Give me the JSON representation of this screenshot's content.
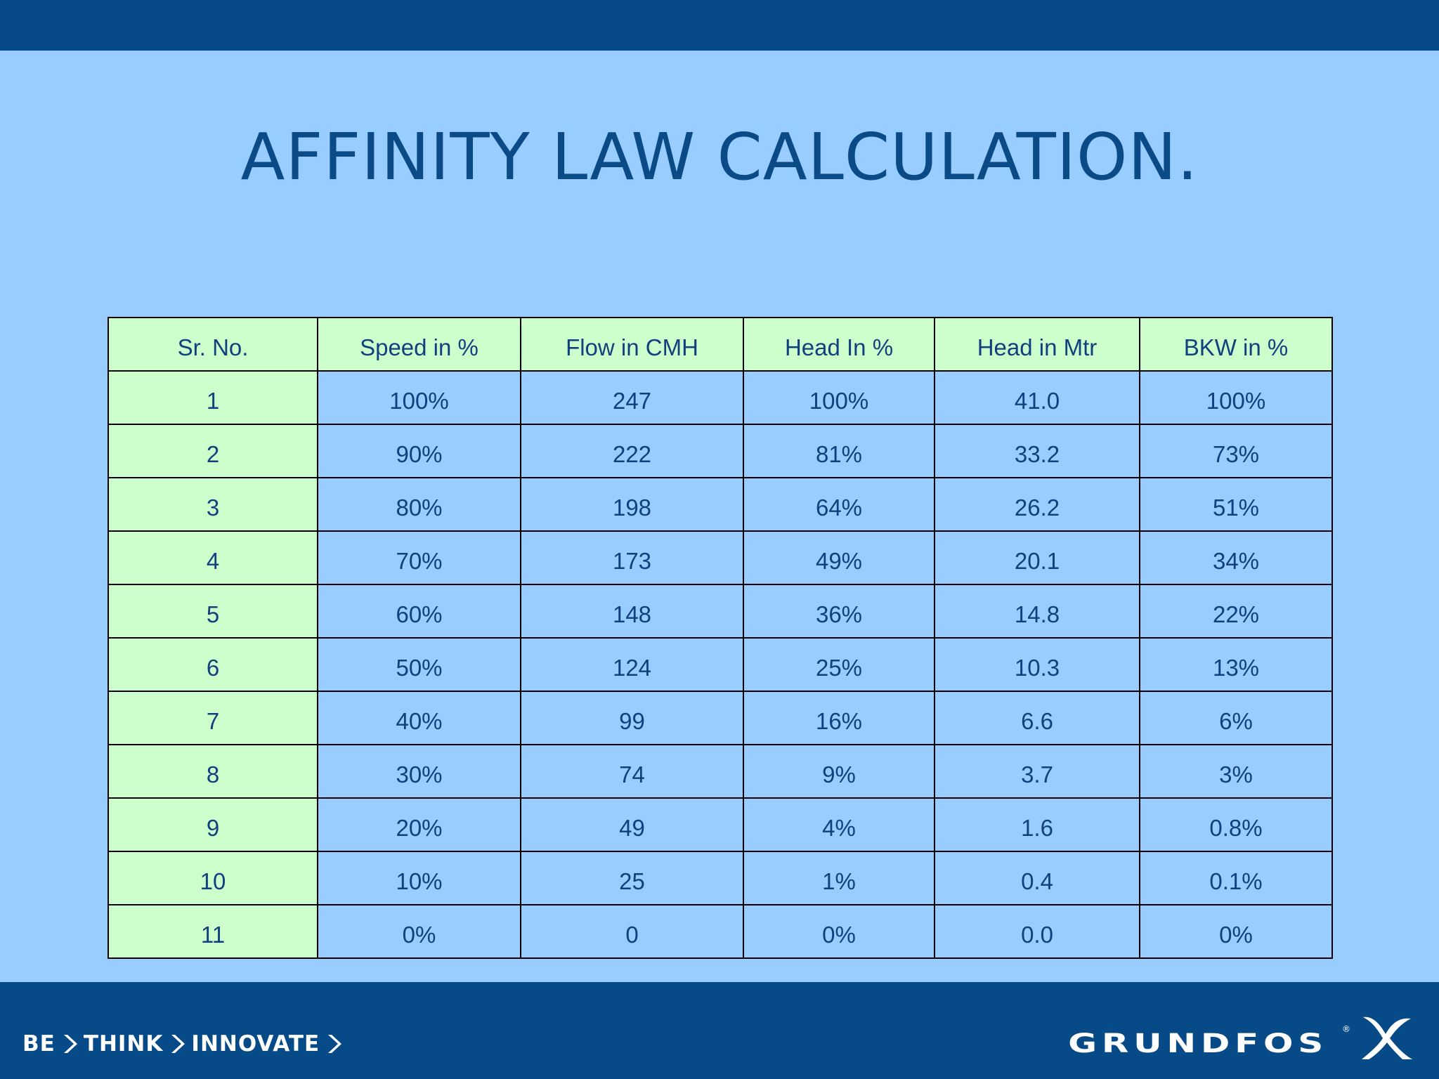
{
  "title": "AFFINITY LAW CALCULATION.",
  "table": {
    "headers": [
      "Sr. No.",
      "Speed in %",
      "Flow in CMH",
      "Head In %",
      "Head in Mtr",
      "BKW in %"
    ],
    "rows": [
      [
        "1",
        "100%",
        "247",
        "100%",
        "41.0",
        "100%"
      ],
      [
        "2",
        "90%",
        "222",
        "81%",
        "33.2",
        "73%"
      ],
      [
        "3",
        "80%",
        "198",
        "64%",
        "26.2",
        "51%"
      ],
      [
        "4",
        "70%",
        "173",
        "49%",
        "20.1",
        "34%"
      ],
      [
        "5",
        "60%",
        "148",
        "36%",
        "14.8",
        "22%"
      ],
      [
        "6",
        "50%",
        "124",
        "25%",
        "10.3",
        "13%"
      ],
      [
        "7",
        "40%",
        "99",
        "16%",
        "6.6",
        "6%"
      ],
      [
        "8",
        "30%",
        "74",
        "9%",
        "3.7",
        "3%"
      ],
      [
        "9",
        "20%",
        "49",
        "4%",
        "1.6",
        "0.8%"
      ],
      [
        "10",
        "10%",
        "25",
        "1%",
        "0.4",
        "0.1%"
      ],
      [
        "11",
        "0%",
        "0",
        "0%",
        "0.0",
        "0%"
      ]
    ]
  },
  "footer": {
    "tagline": [
      "BE",
      "THINK",
      "INNOVATE"
    ],
    "logo_text": "GRUNDFOS",
    "logo_reg": "®",
    "logo_icon": "grundfos-x-icon"
  },
  "colors": {
    "background": "#99ccff",
    "bar": "#064a87",
    "header_cell": "#ccffcc",
    "title_text": "#0a4a87"
  }
}
